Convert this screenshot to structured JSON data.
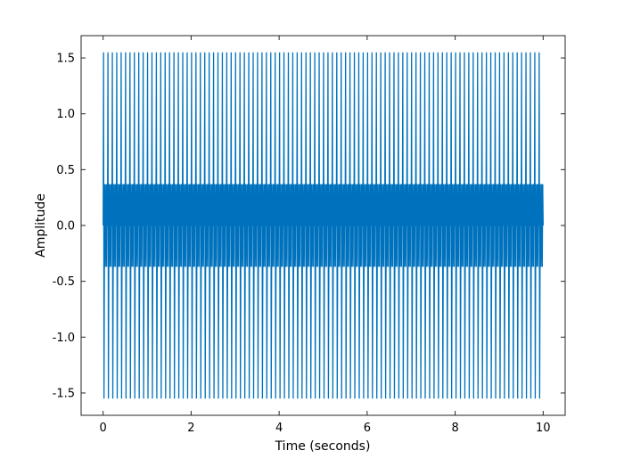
{
  "chart_data": {
    "type": "line",
    "title": "",
    "xlabel": "Time (seconds)",
    "ylabel": "Amplitude",
    "xlim": [
      -0.5,
      10.5
    ],
    "ylim": [
      -1.7,
      1.7
    ],
    "xticks": [
      0,
      2,
      4,
      6,
      8,
      10
    ],
    "xtick_labels": [
      "0",
      "2",
      "4",
      "6",
      "8",
      "10"
    ],
    "yticks": [
      1.5,
      1.0,
      0.5,
      0.0,
      -0.5,
      -1.0,
      -1.5
    ],
    "ytick_labels": [
      "1.5",
      "1.0",
      "0.5",
      "0.0",
      "-0.5",
      "-1.0",
      "-1.5"
    ],
    "grid": false,
    "legend": "none",
    "series": [
      {
        "color": "#0072bd",
        "x_start": 0,
        "x_end": 10,
        "peak_amplitude": 1.55,
        "secondary_amplitude": 0.37,
        "fundamental_period": 0.1
      }
    ]
  }
}
